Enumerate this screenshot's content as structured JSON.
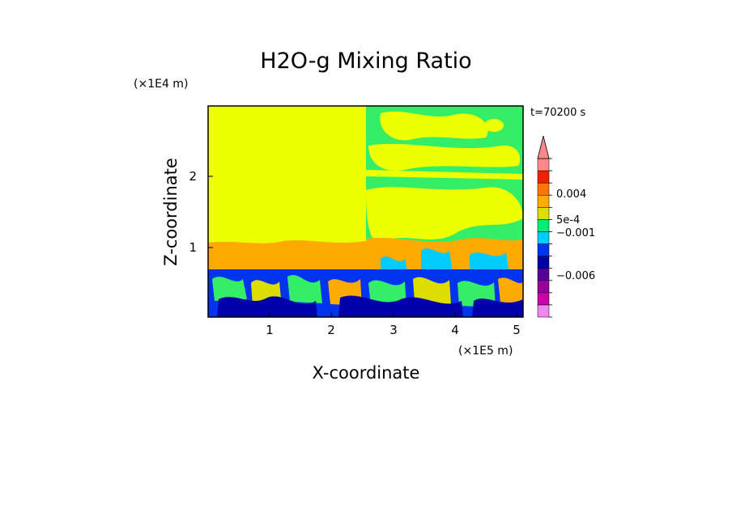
{
  "chart_data": {
    "type": "heatmap",
    "title": "H2O-g Mixing Ratio",
    "xlabel": "X-coordinate",
    "ylabel": "Z-coordinate",
    "x_unit": "(×1E5 m)",
    "y_unit": "(×1E4 m)",
    "time_label": "t=70200 s",
    "xlim": [
      0,
      5.15
    ],
    "ylim": [
      0,
      2.95
    ],
    "x_ticks": [
      "1",
      "2",
      "3",
      "4",
      "5"
    ],
    "y_ticks": [
      "1",
      "2"
    ],
    "colorbar": {
      "labels": [
        "0.004",
        "5e-4",
        "−0.001",
        "−0.006"
      ],
      "colors": [
        "#ee88ee",
        "#cc00aa",
        "#990099",
        "#550099",
        "#0000aa",
        "#0033ee",
        "#00ccff",
        "#00ee77",
        "#dddd00",
        "#ffaa00",
        "#ff7700",
        "#ee2200",
        "#ff8888"
      ]
    },
    "regions": [
      {
        "name": "upper-left",
        "level": "near zero",
        "color": "#eeff00"
      },
      {
        "name": "upper-right",
        "level": "mixed",
        "color": "#33ee66"
      },
      {
        "name": "boundary-layer",
        "level": "negative",
        "color": "#0033ee"
      }
    ]
  }
}
